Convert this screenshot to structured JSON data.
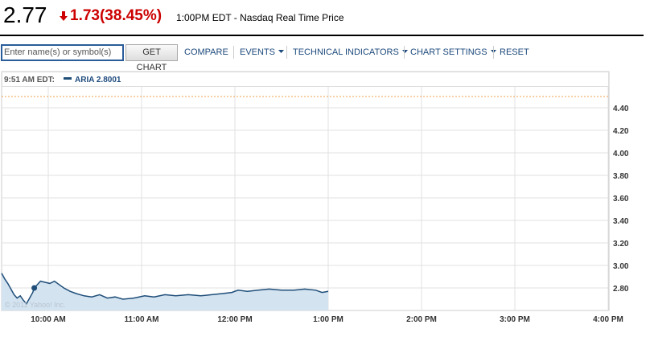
{
  "header": {
    "price": "2.77",
    "change": "1.73",
    "change_pct": "(38.45%)",
    "time_info": "1:00PM EDT - Nasdaq Real Time Price"
  },
  "toolbar": {
    "input_placeholder": "Enter name(s) or symbol(s)",
    "button": "GET CHART",
    "links": [
      "COMPARE",
      "EVENTS",
      "TECHNICAL INDICATORS",
      "CHART SETTINGS",
      "RESET"
    ],
    "dropdowns": [
      false,
      true,
      true,
      true,
      false
    ]
  },
  "chart_data": {
    "type": "area",
    "hover": {
      "time_label": "9:51 AM EDT:",
      "x": 591,
      "value": 2.8001
    },
    "watermark": "© 2011 Yahoo! Inc.",
    "reference_line": {
      "value": 4.5,
      "color": "#f0a050"
    },
    "x": [
      570,
      572,
      574,
      576,
      578,
      580,
      582,
      584,
      586,
      588,
      590,
      591,
      593,
      595,
      598,
      601,
      604,
      607,
      610,
      614,
      618,
      623,
      628,
      633,
      638,
      643,
      648,
      655,
      662,
      668,
      675,
      682,
      690,
      698,
      705,
      712,
      718,
      722,
      728,
      735,
      742,
      750,
      758,
      765,
      772,
      776,
      780
    ],
    "series": [
      {
        "name": "ARIA",
        "color": "#1f4e79",
        "fill": "#d3e3f0",
        "values": [
          2.93,
          2.88,
          2.84,
          2.79,
          2.74,
          2.71,
          2.73,
          2.69,
          2.66,
          2.71,
          2.76,
          2.8001,
          2.83,
          2.86,
          2.85,
          2.84,
          2.86,
          2.83,
          2.8,
          2.77,
          2.75,
          2.73,
          2.72,
          2.74,
          2.71,
          2.72,
          2.7,
          2.71,
          2.73,
          2.72,
          2.74,
          2.73,
          2.74,
          2.73,
          2.74,
          2.75,
          2.76,
          2.78,
          2.77,
          2.78,
          2.79,
          2.78,
          2.78,
          2.79,
          2.78,
          2.76,
          2.77
        ]
      }
    ],
    "xlim": [
      570,
      960
    ],
    "xticks": [
      {
        "value": 600,
        "label": "10:00 AM"
      },
      {
        "value": 660,
        "label": "11:00 AM"
      },
      {
        "value": 720,
        "label": "12:00 PM"
      },
      {
        "value": 780,
        "label": "1:00 PM"
      },
      {
        "value": 840,
        "label": "2:00 PM"
      },
      {
        "value": 900,
        "label": "3:00 PM"
      },
      {
        "value": 960,
        "label": "4:00 PM"
      }
    ],
    "ylim": [
      2.6,
      4.7
    ],
    "yticks": [
      {
        "value": 2.8,
        "label": "2.80"
      },
      {
        "value": 3.0,
        "label": "3.00"
      },
      {
        "value": 3.2,
        "label": "3.20"
      },
      {
        "value": 3.4,
        "label": "3.40"
      },
      {
        "value": 3.6,
        "label": "3.60"
      },
      {
        "value": 3.8,
        "label": "3.80"
      },
      {
        "value": 4.0,
        "label": "4.00"
      },
      {
        "value": 4.2,
        "label": "4.20"
      },
      {
        "value": 4.4,
        "label": "4.40"
      }
    ],
    "grid": true
  }
}
